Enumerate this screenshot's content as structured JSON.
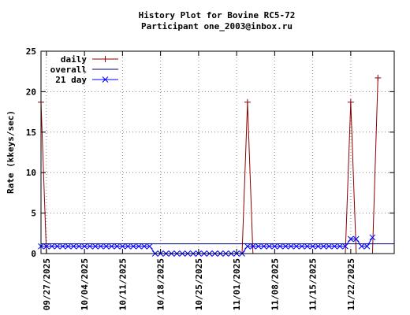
{
  "chart_data": {
    "type": "line",
    "title": "History Plot for Bovine RC5-72",
    "subtitle": "Participant one_2003@inbox.ru",
    "ylabel": "Rate (kkeys/sec)",
    "xlabel": "",
    "ylim": [
      0,
      25
    ],
    "yticks": [
      "0",
      "5",
      "10",
      "15",
      "20",
      "25"
    ],
    "xrange": [
      "2025-09-26",
      "2025-11-30"
    ],
    "xticks": [
      {
        "date": "2025-09-27",
        "label": "09/27/2025"
      },
      {
        "date": "2025-10-04",
        "label": "10/04/2025"
      },
      {
        "date": "2025-10-11",
        "label": "10/11/2025"
      },
      {
        "date": "2025-10-18",
        "label": "10/18/2025"
      },
      {
        "date": "2025-10-25",
        "label": "10/25/2025"
      },
      {
        "date": "2025-11-01",
        "label": "11/01/2025"
      },
      {
        "date": "2025-11-08",
        "label": "11/08/2025"
      },
      {
        "date": "2025-11-15",
        "label": "11/15/2025"
      },
      {
        "date": "2025-11-22",
        "label": "11/22/2025"
      }
    ],
    "grid": true,
    "legend_position": "top-left",
    "series": [
      {
        "name": "daily",
        "color": "#8b0000",
        "marker": "plus",
        "points": [
          [
            "2025-09-26",
            18.7
          ],
          [
            "2025-09-27",
            0
          ],
          [
            "2025-11-02",
            0
          ],
          [
            "2025-11-03",
            18.7
          ],
          [
            "2025-11-04",
            0
          ],
          [
            "2025-11-21",
            0
          ],
          [
            "2025-11-22",
            18.7
          ],
          [
            "2025-11-23",
            0
          ],
          [
            "2025-11-26",
            0
          ],
          [
            "2025-11-27",
            21.7
          ]
        ]
      },
      {
        "name": "overall",
        "color": "#000080",
        "marker": "none",
        "constant": 1.2
      },
      {
        "name": "21 day",
        "color": "#0000ff",
        "marker": "x",
        "points": [
          [
            "2025-09-26",
            0.9
          ],
          [
            "2025-09-27",
            0.9
          ],
          [
            "2025-09-28",
            0.9
          ],
          [
            "2025-09-29",
            0.9
          ],
          [
            "2025-09-30",
            0.9
          ],
          [
            "2025-10-01",
            0.9
          ],
          [
            "2025-10-02",
            0.9
          ],
          [
            "2025-10-03",
            0.9
          ],
          [
            "2025-10-04",
            0.9
          ],
          [
            "2025-10-05",
            0.9
          ],
          [
            "2025-10-06",
            0.9
          ],
          [
            "2025-10-07",
            0.9
          ],
          [
            "2025-10-08",
            0.9
          ],
          [
            "2025-10-09",
            0.9
          ],
          [
            "2025-10-10",
            0.9
          ],
          [
            "2025-10-11",
            0.9
          ],
          [
            "2025-10-12",
            0.9
          ],
          [
            "2025-10-13",
            0.9
          ],
          [
            "2025-10-14",
            0.9
          ],
          [
            "2025-10-15",
            0.9
          ],
          [
            "2025-10-16",
            0.9
          ],
          [
            "2025-10-17",
            0.0
          ],
          [
            "2025-10-18",
            0.0
          ],
          [
            "2025-10-19",
            0.0
          ],
          [
            "2025-10-20",
            0.0
          ],
          [
            "2025-10-21",
            0.0
          ],
          [
            "2025-10-22",
            0.0
          ],
          [
            "2025-10-23",
            0.0
          ],
          [
            "2025-10-24",
            0.0
          ],
          [
            "2025-10-25",
            0.0
          ],
          [
            "2025-10-26",
            0.0
          ],
          [
            "2025-10-27",
            0.0
          ],
          [
            "2025-10-28",
            0.0
          ],
          [
            "2025-10-29",
            0.0
          ],
          [
            "2025-10-30",
            0.0
          ],
          [
            "2025-10-31",
            0.0
          ],
          [
            "2025-11-01",
            0.0
          ],
          [
            "2025-11-02",
            0.0
          ],
          [
            "2025-11-03",
            0.9
          ],
          [
            "2025-11-04",
            0.9
          ],
          [
            "2025-11-05",
            0.9
          ],
          [
            "2025-11-06",
            0.9
          ],
          [
            "2025-11-07",
            0.9
          ],
          [
            "2025-11-08",
            0.9
          ],
          [
            "2025-11-09",
            0.9
          ],
          [
            "2025-11-10",
            0.9
          ],
          [
            "2025-11-11",
            0.9
          ],
          [
            "2025-11-12",
            0.9
          ],
          [
            "2025-11-13",
            0.9
          ],
          [
            "2025-11-14",
            0.9
          ],
          [
            "2025-11-15",
            0.9
          ],
          [
            "2025-11-16",
            0.9
          ],
          [
            "2025-11-17",
            0.9
          ],
          [
            "2025-11-18",
            0.9
          ],
          [
            "2025-11-19",
            0.9
          ],
          [
            "2025-11-20",
            0.9
          ],
          [
            "2025-11-21",
            0.9
          ],
          [
            "2025-11-22",
            1.8
          ],
          [
            "2025-11-23",
            1.8
          ],
          [
            "2025-11-24",
            0.9
          ],
          [
            "2025-11-25",
            0.9
          ],
          [
            "2025-11-26",
            2.0
          ]
        ]
      }
    ]
  }
}
